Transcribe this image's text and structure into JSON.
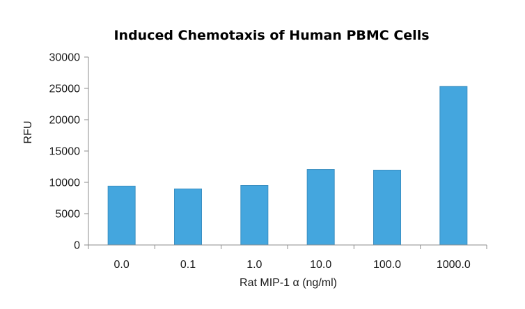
{
  "chart_data": {
    "type": "bar",
    "title": "Induced Chemotaxis of Human PBMC Cells",
    "xlabel": "Rat MIP-1 α (ng/ml)",
    "ylabel": "RFU",
    "categories": [
      "0.0",
      "0.1",
      "1.0",
      "10.0",
      "100.0",
      "1000.0"
    ],
    "values": [
      9400,
      8950,
      9500,
      12050,
      11950,
      25300
    ],
    "ylim": [
      0,
      30000
    ],
    "yticks": [
      "0",
      "5000",
      "10000",
      "15000",
      "20000",
      "25000",
      "30000"
    ],
    "grid": false,
    "legend": "none",
    "bar_color": "#44a6de",
    "bar_edge_color": "#3a8fc2"
  }
}
